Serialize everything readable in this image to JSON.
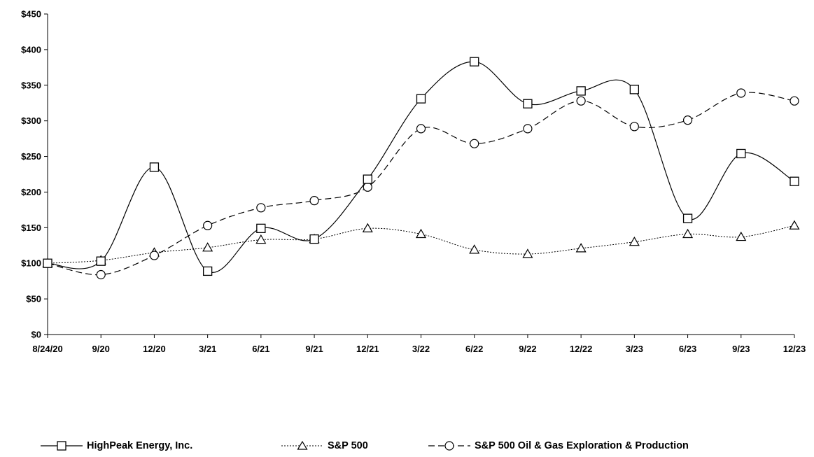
{
  "chart_data": {
    "type": "line",
    "categories": [
      "8/24/20",
      "9/20",
      "12/20",
      "3/21",
      "6/21",
      "9/21",
      "12/21",
      "3/22",
      "6/22",
      "9/22",
      "12/22",
      "3/23",
      "6/23",
      "9/23",
      "12/23"
    ],
    "y_ticks": [
      "$0",
      "$50",
      "$100",
      "$150",
      "$200",
      "$250",
      "$300",
      "$350",
      "$400",
      "$450"
    ],
    "ylim": [
      0,
      450
    ],
    "grid": false,
    "legend_position": "bottom",
    "series": [
      {
        "name": "HighPeak Energy, Inc.",
        "marker": "square",
        "dash": "solid",
        "color": "#000000",
        "values": [
          100,
          103,
          235,
          89,
          149,
          134,
          218,
          331,
          383,
          324,
          342,
          344,
          163,
          254,
          215
        ]
      },
      {
        "name": "S&P 500",
        "marker": "triangle",
        "dash": "dotted",
        "color": "#000000",
        "values": [
          100,
          104,
          115,
          122,
          133,
          134,
          149,
          141,
          119,
          113,
          121,
          130,
          141,
          137,
          153
        ]
      },
      {
        "name": "S&P 500 Oil & Gas Exploration & Production",
        "marker": "circle",
        "dash": "dashed",
        "color": "#000000",
        "values": [
          100,
          84,
          111,
          153,
          178,
          188,
          207,
          289,
          268,
          289,
          328,
          292,
          301,
          339,
          328
        ]
      }
    ]
  }
}
